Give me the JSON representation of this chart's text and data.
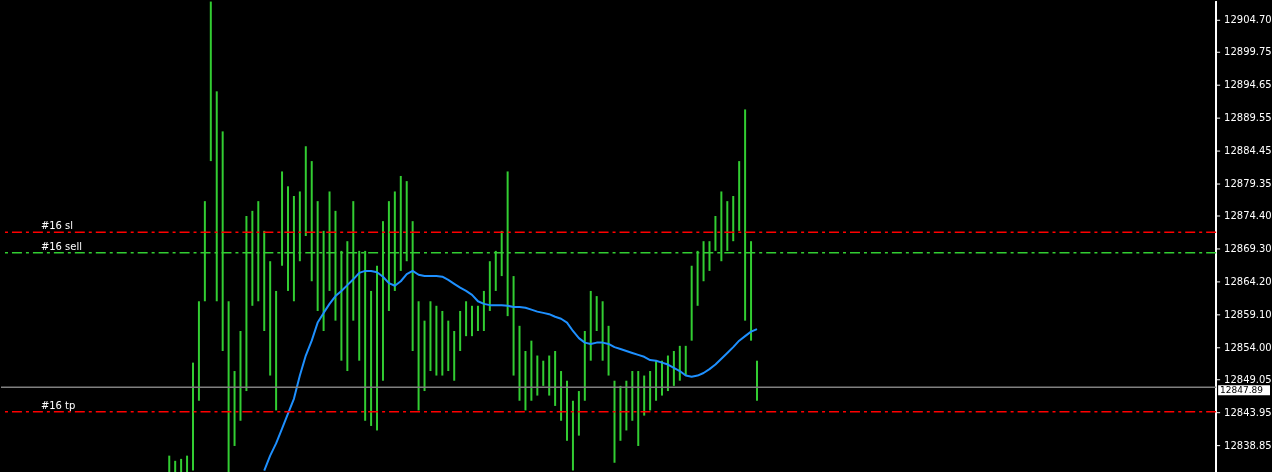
{
  "chart_data": {
    "type": "bar",
    "categories": [
      null,
      null,
      null,
      null,
      null,
      null,
      null,
      null,
      null,
      null,
      null,
      null,
      null,
      null,
      null,
      null,
      null,
      null,
      null,
      null,
      null,
      null,
      null,
      null,
      null,
      null,
      null,
      null,
      null,
      null,
      null,
      null,
      null,
      null,
      null,
      null,
      null,
      null,
      null,
      null,
      null,
      null,
      null,
      null,
      null,
      null,
      null,
      null,
      null,
      null,
      null,
      null,
      null,
      null,
      null,
      null,
      null,
      null,
      null,
      null,
      null,
      null,
      null,
      null,
      null,
      null,
      null,
      null,
      null,
      null,
      null,
      null,
      null,
      null,
      null,
      null,
      null,
      null,
      null,
      null,
      null,
      null,
      null,
      null,
      null,
      null,
      null,
      null,
      null,
      null,
      null,
      null,
      null,
      null,
      null,
      null,
      null,
      null,
      null,
      null,
      null,
      null,
      null,
      null,
      null,
      null,
      null,
      null,
      null,
      null,
      null,
      null,
      null,
      null,
      null,
      null,
      null,
      null,
      null,
      null,
      null,
      null,
      null,
      null,
      null,
      null,
      null,
      null,
      null,
      null,
      null,
      null,
      null,
      null,
      null,
      null,
      null,
      null,
      null,
      null,
      null,
      null,
      null,
      null,
      null,
      null,
      null,
      null,
      null,
      null,
      null,
      null,
      null,
      null,
      null,
      null,
      null,
      null,
      null,
      null,
      null,
      null,
      null,
      null,
      null,
      null,
      null,
      null,
      null,
      null,
      null,
      null,
      null,
      null,
      null,
      null,
      null,
      null,
      null,
      null,
      null,
      null,
      null,
      null,
      null,
      null,
      null,
      null,
      null,
      null,
      null,
      null,
      null,
      null,
      null,
      null,
      null,
      null,
      null,
      null,
      null,
      null,
      null
    ],
    "series": [
      {
        "color": "#32cd32",
        "base": [
          null,
          null,
          null,
          null,
          null,
          null,
          null,
          null,
          null,
          null,
          null,
          null,
          null,
          null,
          null,
          null,
          null,
          null,
          null,
          null,
          null,
          null,
          null,
          null,
          null,
          null,
          null,
          12834.7,
          12834.7,
          12834.7,
          12834.7,
          12835.0,
          12845.8,
          12861.2,
          12882.9,
          12861.2,
          12853.5,
          12834.7,
          12838.8,
          12842.7,
          12847.3,
          12860.5,
          12861.2,
          12856.6,
          12849.7,
          12844.3,
          12866.7,
          12862.8,
          12861.2,
          12867.4,
          12871.3,
          12864.3,
          12859.7,
          12856.6,
          12862.8,
          12858.2,
          12852.0,
          12850.4,
          12858.2,
          12852.0,
          12842.7,
          12841.9,
          12841.2,
          12848.9,
          12859.7,
          12862.8,
          12865.9,
          12867.4,
          12853.5,
          12844.3,
          12847.3,
          12850.4,
          12849.7,
          12849.7,
          12850.4,
          12848.9,
          12853.5,
          12855.8,
          12855.8,
          12856.6,
          12856.6,
          12859.7,
          12862.8,
          12865.1,
          12858.9,
          12849.7,
          12845.8,
          12844.3,
          12845.8,
          12846.6,
          12848.1,
          12846.6,
          12845.0,
          12842.7,
          12839.6,
          12835.0,
          12840.4,
          12845.8,
          12852.0,
          12856.6,
          12852.0,
          12849.7,
          12836.2,
          12839.6,
          12841.2,
          12842.7,
          12838.8,
          12843.5,
          12844.3,
          12845.8,
          12846.6,
          12847.3,
          12848.1,
          12848.9,
          12849.7,
          12855.1,
          12860.5,
          12864.3,
          12865.9,
          12869.0,
          12867.4,
          12869.0,
          12870.5,
          12872.1,
          12858.2,
          12855.1,
          12845.8,
          null,
          null,
          null,
          null,
          null,
          null,
          null,
          null,
          null,
          null,
          null,
          null,
          null,
          null,
          null,
          null,
          null,
          null,
          null,
          null,
          null,
          null,
          null,
          null,
          null,
          null,
          null,
          null,
          null,
          null,
          null,
          null,
          null,
          null,
          null,
          null,
          null,
          null,
          null,
          null,
          null,
          null,
          null,
          null,
          null,
          null,
          null,
          null,
          null,
          null,
          null,
          null,
          null,
          null,
          null,
          null,
          null,
          null,
          null,
          null,
          null,
          null,
          null,
          null,
          null,
          null,
          null,
          null,
          null,
          null,
          null,
          null,
          null,
          null,
          null,
          null
        ],
        "values": [
          null,
          null,
          null,
          null,
          null,
          null,
          null,
          null,
          null,
          null,
          null,
          null,
          null,
          null,
          null,
          null,
          null,
          null,
          null,
          null,
          null,
          null,
          null,
          null,
          null,
          null,
          null,
          2.6,
          1.8,
          2.1,
          2.6,
          16.7,
          15.4,
          15.5,
          24.7,
          32.5,
          34.0,
          26.5,
          11.6,
          13.9,
          27.1,
          14.7,
          15.5,
          15.5,
          17.7,
          18.5,
          14.6,
          16.2,
          16.3,
          10.8,
          13.9,
          18.6,
          17.0,
          15.5,
          15.4,
          17.0,
          17.0,
          20.1,
          18.5,
          17.0,
          26.3,
          20.9,
          25.5,
          24.7,
          17.0,
          15.4,
          14.7,
          12.4,
          20.1,
          16.9,
          10.9,
          10.8,
          10.8,
          10.0,
          7.8,
          7.7,
          6.2,
          5.4,
          4.7,
          3.9,
          6.2,
          7.7,
          6.2,
          7.0,
          22.4,
          15.4,
          11.6,
          9.2,
          9.3,
          6.2,
          3.9,
          6.2,
          8.5,
          7.7,
          9.3,
          10.8,
          6.9,
          10.8,
          10.8,
          5.4,
          9.2,
          7.7,
          12.7,
          8.5,
          7.7,
          7.7,
          11.6,
          6.2,
          6.1,
          6.2,
          5.4,
          5.5,
          5.4,
          5.4,
          4.6,
          11.6,
          8.5,
          6.2,
          4.6,
          5.4,
          10.8,
          7.7,
          7.0,
          10.8,
          32.7,
          15.4,
          6.2,
          null,
          null,
          null,
          null,
          null,
          null,
          null,
          null,
          null,
          null,
          null,
          null,
          null,
          null,
          null,
          null,
          null,
          null,
          null,
          null,
          null,
          null,
          null,
          null,
          null,
          null,
          null,
          null,
          null,
          null,
          null,
          null,
          null,
          null,
          null,
          null,
          null,
          null,
          null,
          null,
          null,
          null,
          null,
          null,
          null,
          null,
          null,
          null,
          null,
          null,
          null,
          null,
          null,
          null,
          null,
          null,
          null,
          null,
          null,
          null,
          null,
          null,
          null,
          null,
          null,
          null,
          null,
          null,
          null,
          null,
          null,
          null,
          null,
          null,
          null,
          null
        ]
      },
      {
        "type": "line",
        "color": "#1e90ff",
        "values": [
          null,
          null,
          null,
          null,
          null,
          null,
          null,
          null,
          null,
          null,
          null,
          null,
          null,
          null,
          null,
          null,
          null,
          null,
          null,
          null,
          null,
          null,
          null,
          null,
          null,
          null,
          null,
          null,
          null,
          null,
          null,
          null,
          null,
          null,
          null,
          null,
          null,
          null,
          null,
          null,
          null,
          null,
          null,
          12835.0,
          12837.3,
          12839.2,
          12841.5,
          12843.8,
          12846.1,
          12849.7,
          12852.8,
          12855.1,
          12857.9,
          12859.4,
          12860.8,
          12862.0,
          12862.8,
          12863.7,
          12864.6,
          12865.6,
          12865.9,
          12865.9,
          12865.7,
          12865.0,
          12864.0,
          12863.6,
          12864.3,
          12865.4,
          12865.9,
          12865.3,
          12865.1,
          12865.1,
          12865.1,
          12865.0,
          12864.5,
          12863.9,
          12863.3,
          12862.8,
          12862.2,
          12861.2,
          12860.8,
          12860.6,
          12860.6,
          12860.6,
          12860.5,
          12860.3,
          12860.3,
          12860.2,
          12859.9,
          12859.6,
          12859.4,
          12859.2,
          12858.8,
          12858.5,
          12857.9,
          12856.6,
          12855.5,
          12854.8,
          12854.6,
          12854.8,
          12854.8,
          12854.6,
          12854.1,
          12853.8,
          12853.5,
          12853.2,
          12852.9,
          12852.6,
          12852.1,
          12852.0,
          12851.7,
          12851.4,
          12850.9,
          12850.4,
          12849.7,
          12849.5,
          12849.7,
          12850.1,
          12850.7,
          12851.4,
          12852.3,
          12853.2,
          12854.1,
          12855.1,
          12855.8,
          12856.5,
          12856.9,
          null,
          null,
          null,
          null,
          null,
          null,
          null,
          null,
          null,
          null,
          null,
          null,
          null,
          null,
          null,
          null,
          null,
          null,
          null,
          null,
          null,
          null,
          null,
          null,
          null,
          null,
          null,
          null,
          null,
          null,
          null,
          null,
          null,
          null,
          null,
          null,
          null,
          null,
          null,
          null,
          null,
          null,
          null,
          null,
          null,
          null,
          null,
          null,
          null,
          null,
          null,
          null,
          null,
          null,
          null,
          null,
          null,
          null,
          null,
          null,
          null,
          null,
          null,
          null,
          null,
          null,
          null,
          null,
          null,
          null,
          null,
          null,
          null,
          null,
          null,
          null
        ]
      }
    ],
    "ylim": [
      12834.7,
      12907.6
    ],
    "yticks": [
      {
        "value": 12904.7,
        "label": "12904.70"
      },
      {
        "value": 12899.75,
        "label": "12899.75"
      },
      {
        "value": 12894.65,
        "label": "12894.65"
      },
      {
        "value": 12889.55,
        "label": "12889.55"
      },
      {
        "value": 12884.45,
        "label": "12884.45"
      },
      {
        "value": 12879.35,
        "label": "12879.35"
      },
      {
        "value": 12874.4,
        "label": "12874.40"
      },
      {
        "value": 12869.3,
        "label": "12869.30"
      },
      {
        "value": 12864.2,
        "label": "12864.20"
      },
      {
        "value": 12859.1,
        "label": "12859.10"
      },
      {
        "value": 12854.0,
        "label": "12854.00"
      },
      {
        "value": 12849.05,
        "label": "12849.05"
      },
      {
        "value": 12843.95,
        "label": "12843.95"
      },
      {
        "value": 12838.85,
        "label": "12838.85"
      }
    ],
    "ref_lines": [
      {
        "axis": "y",
        "value": 12871.9,
        "label": "#16 sl",
        "color": "#ff0000",
        "line_style": "dashed"
      },
      {
        "axis": "y",
        "value": 12868.7,
        "label": "#16 sell",
        "color": "#32cd32",
        "line_style": "dashed"
      },
      {
        "axis": "y",
        "value": 12844.1,
        "label": "#16 tp",
        "color": "#ff0000",
        "line_style": "dashed"
      },
      {
        "axis": "y",
        "value": 12847.89,
        "label": "12847.89",
        "color": "#808080",
        "line_style": "solid"
      }
    ],
    "grid": false,
    "tick_labels": "y"
  }
}
